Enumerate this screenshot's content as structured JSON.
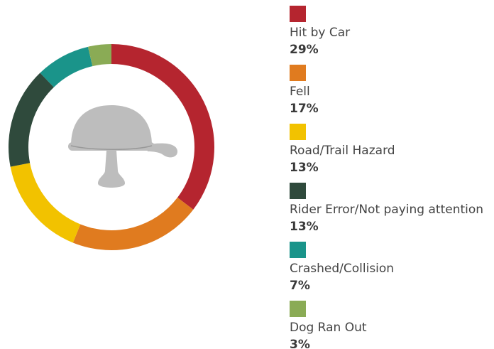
{
  "chart_data": {
    "type": "donut",
    "categories": [
      "Hit by Car",
      "Fell",
      "Road/Trail Hazard",
      "Rider Error/Not paying attention",
      "Crashed/Collision",
      "Dog Ran Out"
    ],
    "values": [
      29,
      17,
      13,
      13,
      7,
      3
    ],
    "value_labels": [
      "29%",
      "17%",
      "13%",
      "13%",
      "7%",
      "3%"
    ],
    "colors": [
      "#b5252f",
      "#e07b1f",
      "#f2c200",
      "#2f4a3c",
      "#1a948a",
      "#8aab55"
    ]
  }
}
